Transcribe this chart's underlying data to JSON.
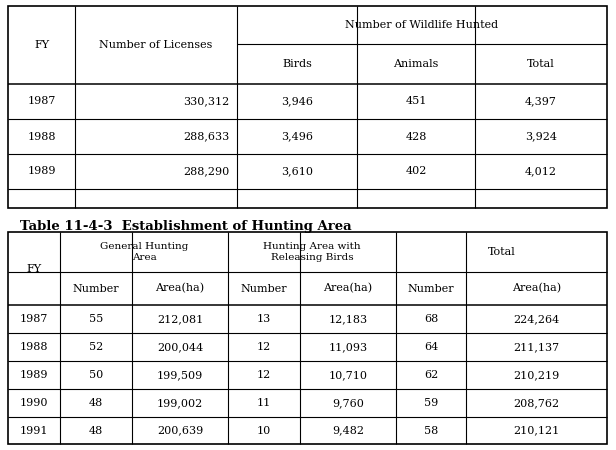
{
  "table2_title": "Table 11-4-3  Establishment of Hunting Area",
  "table1_data": [
    [
      "1987",
      "330,312",
      "3,946",
      "451",
      "4,397"
    ],
    [
      "1988",
      "288,633",
      "3,496",
      "428",
      "3,924"
    ],
    [
      "1989",
      "288,290",
      "3,610",
      "402",
      "4,012"
    ]
  ],
  "table2_data": [
    [
      "1987",
      "55",
      "212,081",
      "13",
      "12,183",
      "68",
      "224,264"
    ],
    [
      "1988",
      "52",
      "200,044",
      "12",
      "11,093",
      "64",
      "211,137"
    ],
    [
      "1989",
      "50",
      "199,509",
      "12",
      "10,710",
      "62",
      "210,219"
    ],
    [
      "1990",
      "48",
      "199,002",
      "11",
      "9,760",
      "59",
      "208,762"
    ],
    [
      "1991",
      "48",
      "200,639",
      "10",
      "9,482",
      "58",
      "210,121"
    ]
  ],
  "bg_color": "#ffffff",
  "line_color": "#000000",
  "text_color": "#000000",
  "font_size": 8.0
}
